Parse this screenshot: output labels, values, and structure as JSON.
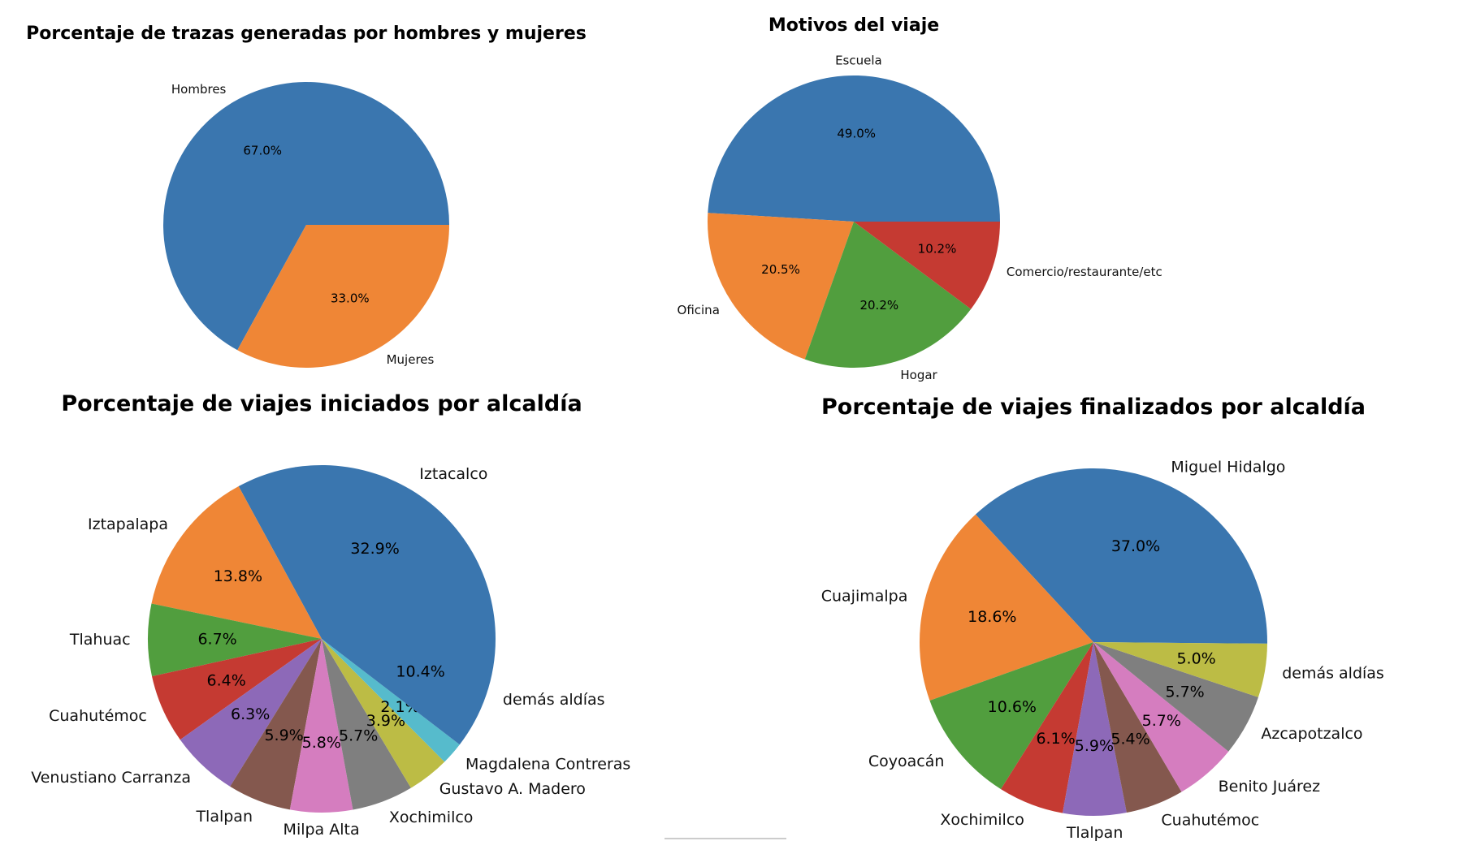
{
  "chart_data": [
    {
      "type": "pie",
      "title": "Porcentaje de trazas generadas por hombres y mujeres",
      "labels": [
        "Hombres",
        "Mujeres"
      ],
      "values": [
        67.0,
        33.0
      ],
      "pct_labels": [
        "67.0%",
        "33.0%"
      ],
      "colors": [
        "#3a76af",
        "#ef8636"
      ]
    },
    {
      "type": "pie",
      "title": "Motivos del viaje",
      "labels": [
        "Escuela",
        "Oficina",
        "Hogar",
        "Comercio/restaurante/etc"
      ],
      "values": [
        49.0,
        20.5,
        20.2,
        10.2
      ],
      "pct_labels": [
        "49.0%",
        "20.5%",
        "20.2%",
        "10.2%"
      ],
      "colors": [
        "#3a76af",
        "#ef8636",
        "#519e3e",
        "#c53a32"
      ]
    },
    {
      "type": "pie",
      "title": "Porcentaje de viajes iniciados por alcaldía",
      "labels": [
        "Iztacalco",
        "Iztapalapa",
        "Tlahuac",
        "Cuahutémoc",
        "Venustiano Carranza",
        "Tlalpan",
        "Milpa Alta",
        "Xochimilco",
        "Gustavo A. Madero",
        "Magdalena Contreras",
        "demás aldías"
      ],
      "values": [
        32.9,
        13.8,
        6.7,
        6.4,
        6.3,
        5.9,
        5.8,
        5.7,
        3.9,
        2.1,
        10.4
      ],
      "pct_labels": [
        "32.9%",
        "13.8%",
        "6.7%",
        "6.4%",
        "6.3%",
        "5.9%",
        "5.8%",
        "5.7%",
        "3.9%",
        "2.1%",
        "10.4%"
      ],
      "colors": [
        "#3a76af",
        "#ef8636",
        "#519e3e",
        "#c53a32",
        "#8d69b8",
        "#84584e",
        "#d57dbf",
        "#7f7f7f",
        "#bcbc45",
        "#56bbcc",
        "#3a76af"
      ]
    },
    {
      "type": "pie",
      "title": "Porcentaje de viajes finalizados por alcaldía",
      "labels": [
        "Miguel Hidalgo",
        "Cuajimalpa",
        "Coyoacán",
        "Xochimilco",
        "Tlalpan",
        "Cuahutémoc",
        "Benito Juárez",
        "Azcapotzalco",
        "demás aldías"
      ],
      "values": [
        37.0,
        18.6,
        10.6,
        6.1,
        5.9,
        5.4,
        5.7,
        5.7,
        5.0
      ],
      "pct_labels": [
        "37.0%",
        "18.6%",
        "10.6%",
        "6.1%",
        "5.9%",
        "5.4%",
        "5.7%",
        "5.7%",
        "5.0%"
      ],
      "colors": [
        "#3a76af",
        "#ef8636",
        "#519e3e",
        "#c53a32",
        "#8d69b8",
        "#84584e",
        "#d57dbf",
        "#7f7f7f",
        "#bcbc45"
      ]
    }
  ]
}
